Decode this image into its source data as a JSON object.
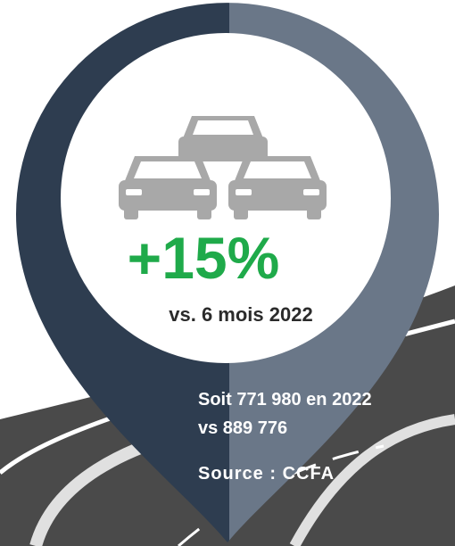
{
  "headline": "+15%",
  "subtitle": "vs. 6 mois 2022",
  "detail_lines": [
    "Soit 771 980 en 2022",
    "vs 889 776"
  ],
  "source": "Source : CCFA"
}
